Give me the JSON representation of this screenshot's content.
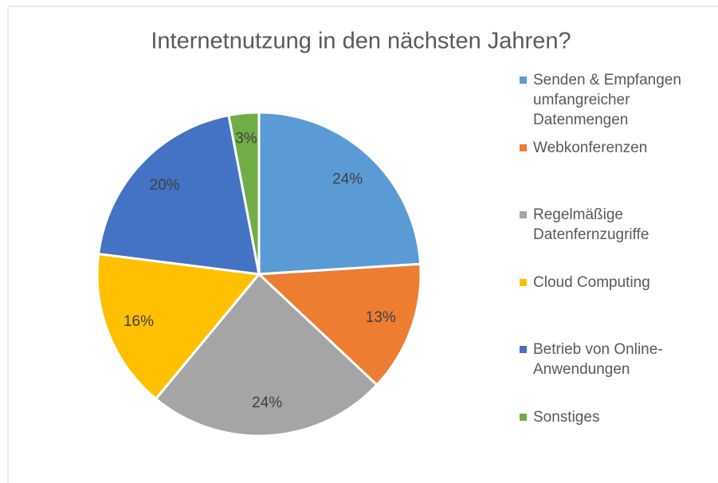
{
  "chart_data": {
    "type": "pie",
    "title": "Internetnutzung in den nächsten Jahren?",
    "categories": [
      "Senden & Empfangen umfangreicher Datenmengen",
      "Webkonferenzen",
      "Regelmäßige Datenfernzugriffe",
      "Cloud Computing",
      "Betrieb von Online-Anwendungen",
      "Sonstiges"
    ],
    "values": [
      24,
      13,
      24,
      16,
      20,
      3
    ],
    "value_labels": [
      "24%",
      "13%",
      "24%",
      "16%",
      "20%",
      "3%"
    ],
    "colors": [
      "#5b9bd5",
      "#ed7d31",
      "#a5a5a5",
      "#ffc000",
      "#4472c4",
      "#70ad47"
    ],
    "legend": "right"
  }
}
